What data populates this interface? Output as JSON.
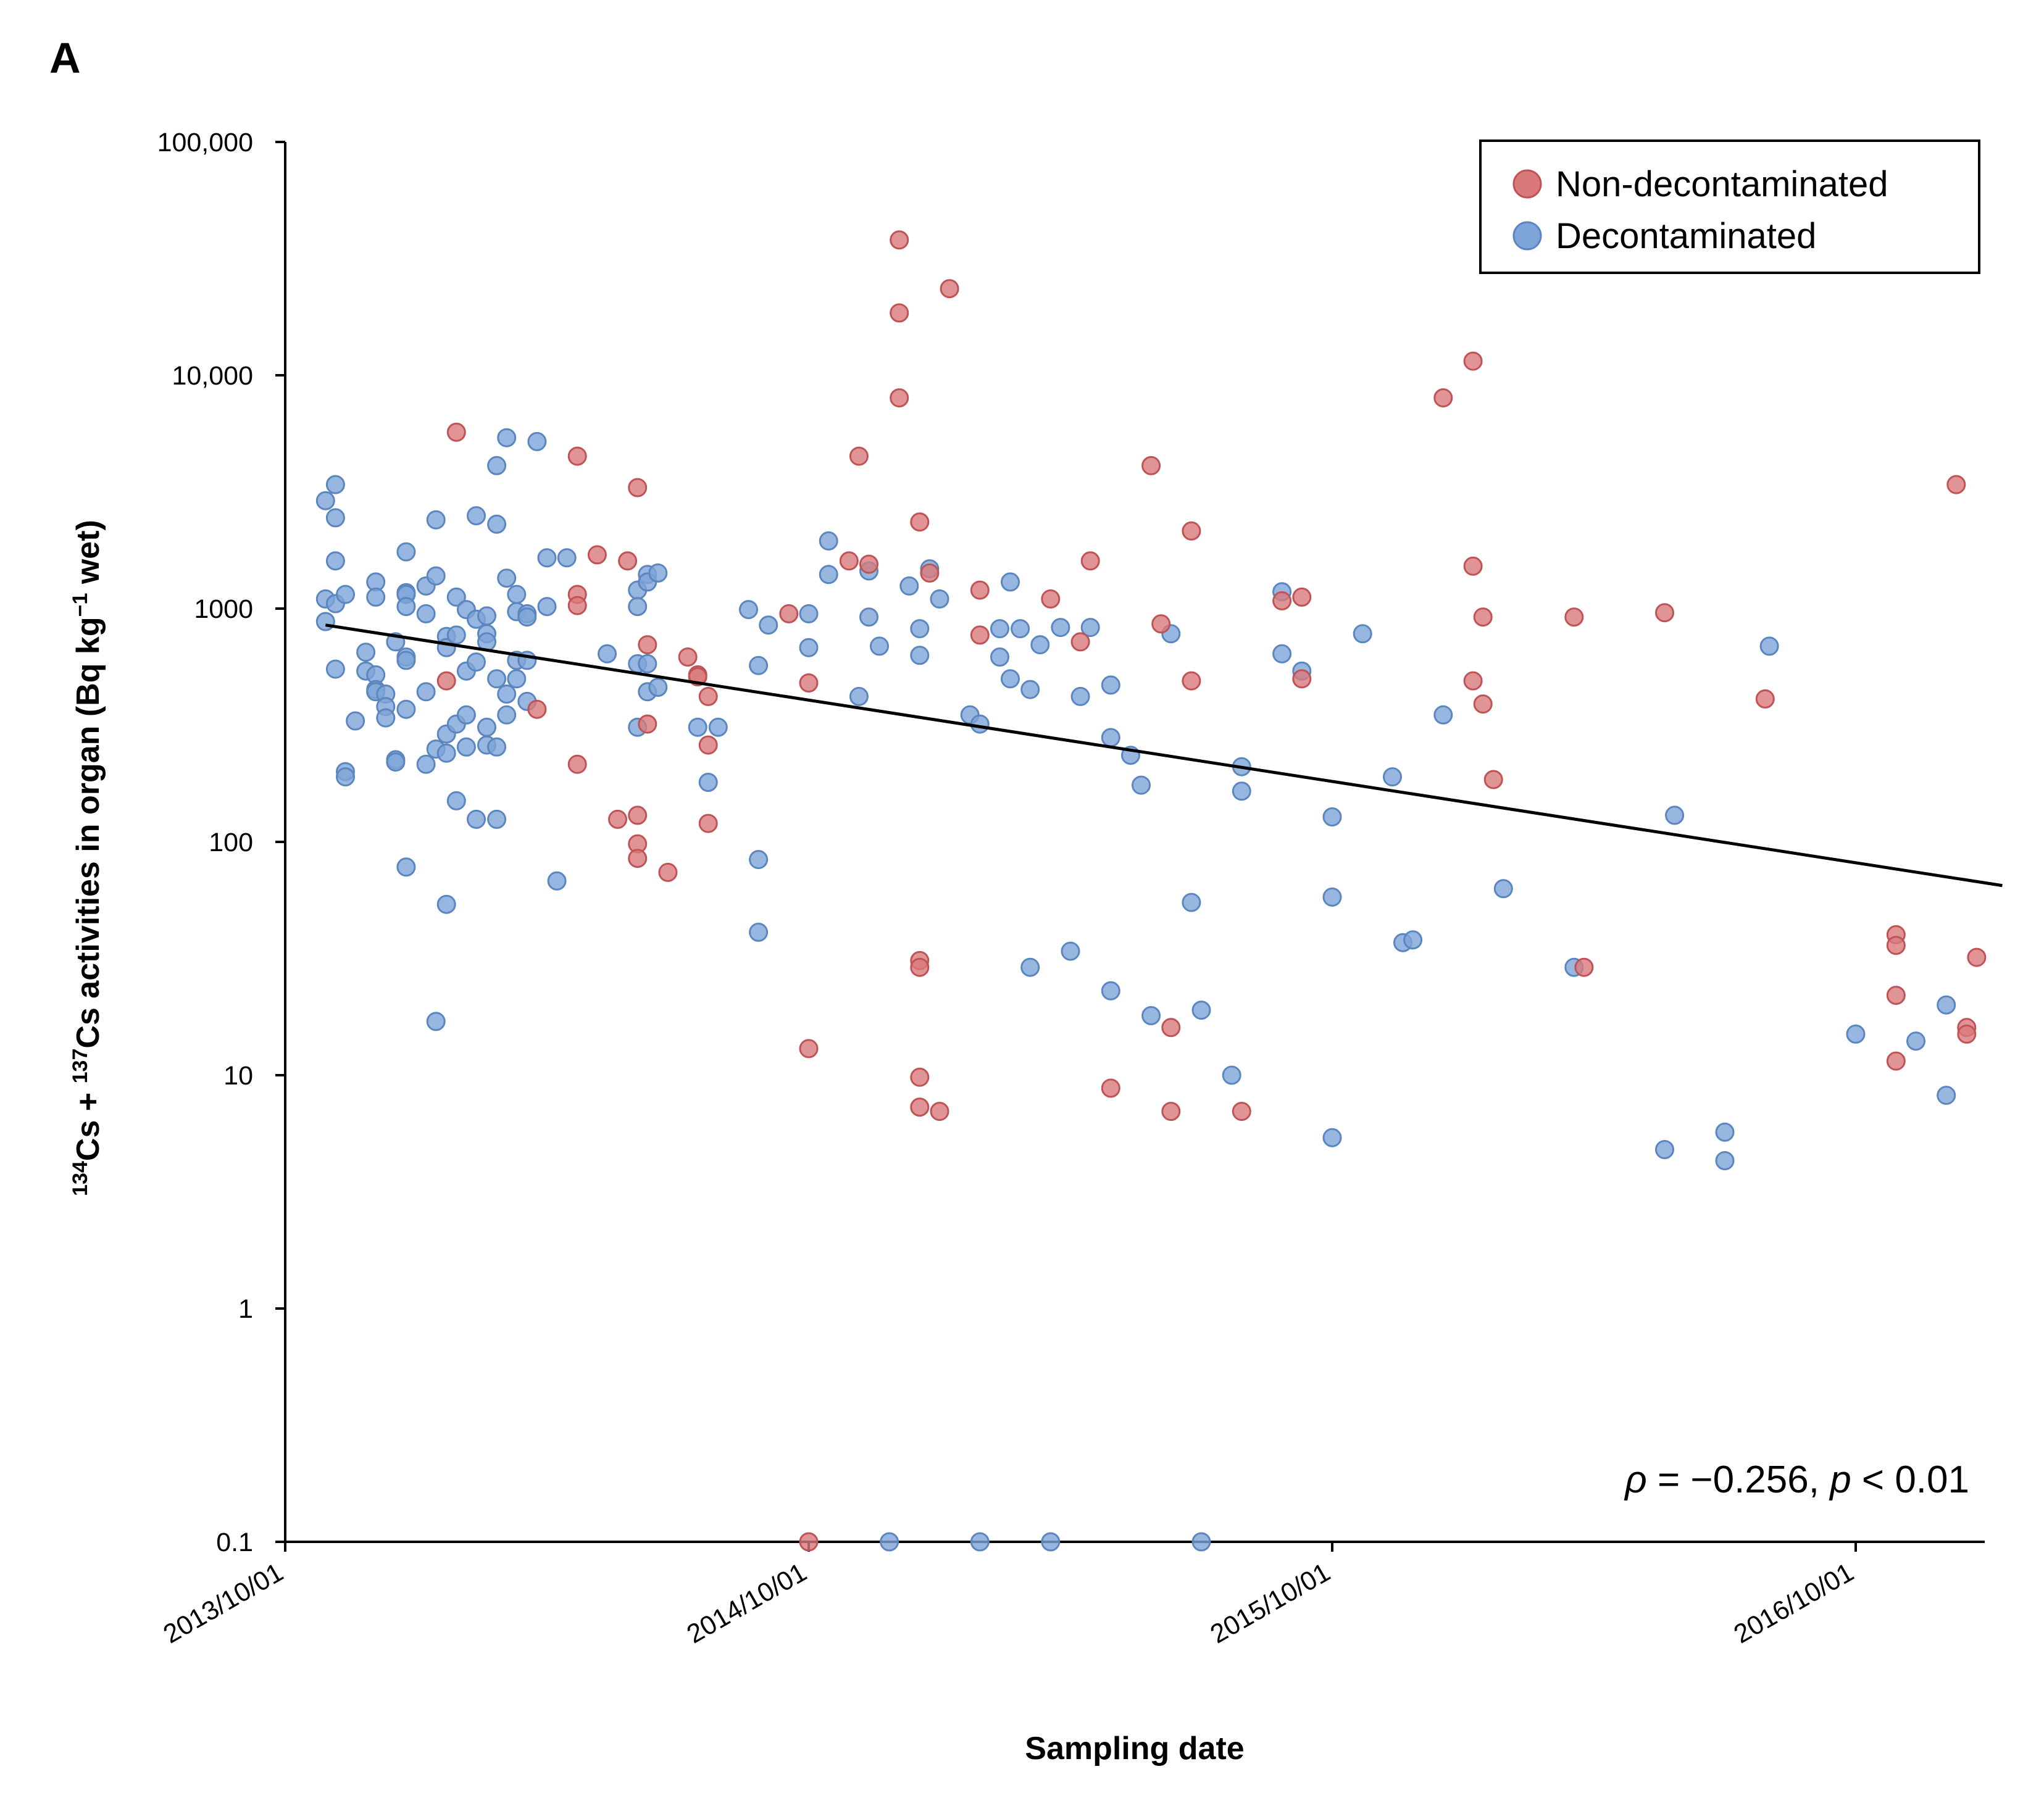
{
  "panel_label": "A",
  "chart_data": {
    "type": "scatter",
    "title": "",
    "xlabel": "Sampling date",
    "ylabel_parts": {
      "sup1": "134",
      "part1": "Cs + ",
      "sup2": "137",
      "part2": "Cs activities in organ (Bq kg",
      "sup3": "−1",
      "part3": " wet)"
    },
    "yscale": "log",
    "ylim": [
      0.1,
      100000
    ],
    "xlim": [
      2013.75,
      2017.0
    ],
    "y_ticks": [
      {
        "value": 0.1,
        "label": "0.1"
      },
      {
        "value": 1,
        "label": "1"
      },
      {
        "value": 10,
        "label": "10"
      },
      {
        "value": 100,
        "label": "100"
      },
      {
        "value": 1000,
        "label": "1000"
      },
      {
        "value": 10000,
        "label": "10,000"
      },
      {
        "value": 100000,
        "label": "100,000"
      }
    ],
    "x_ticks": [
      {
        "value": 2013.75,
        "label": "2013/10/01"
      },
      {
        "value": 2014.75,
        "label": "2014/10/01"
      },
      {
        "value": 2015.75,
        "label": "2015/10/01"
      },
      {
        "value": 2016.75,
        "label": "2016/10/01"
      }
    ],
    "legend": {
      "position": "top-right",
      "entries": [
        {
          "name": "Non-decontaminated",
          "color": "#d9797b",
          "edge": "#c05355"
        },
        {
          "name": "Decontaminated",
          "color": "#7ea5d8",
          "edge": "#5b86bf"
        }
      ]
    },
    "trendline": {
      "x": [
        2013.827,
        2017.03
      ],
      "y": [
        850,
        65
      ]
    },
    "annotation": {
      "rho": "ρ",
      "text_middle": " = −0.256, ",
      "p": "p",
      "text_end": " < 0.01"
    },
    "series": [
      {
        "name": "Decontaminated",
        "color": "#7ea5d8",
        "points": [
          [
            2013.827,
            2900
          ],
          [
            2013.827,
            1100
          ],
          [
            2013.827,
            880
          ],
          [
            2013.846,
            3400
          ],
          [
            2013.846,
            2450
          ],
          [
            2013.846,
            1600
          ],
          [
            2013.846,
            1050
          ],
          [
            2013.846,
            550
          ],
          [
            2013.865,
            1150
          ],
          [
            2013.865,
            200
          ],
          [
            2013.865,
            190
          ],
          [
            2013.884,
            330
          ],
          [
            2013.904,
            650
          ],
          [
            2013.904,
            540
          ],
          [
            2013.923,
            1300
          ],
          [
            2013.923,
            1120
          ],
          [
            2013.923,
            520
          ],
          [
            2013.923,
            450
          ],
          [
            2013.923,
            440
          ],
          [
            2013.942,
            430
          ],
          [
            2013.942,
            380
          ],
          [
            2013.942,
            340
          ],
          [
            2013.961,
            720
          ],
          [
            2013.961,
            225
          ],
          [
            2013.961,
            220
          ],
          [
            2013.981,
            1750
          ],
          [
            2013.981,
            1170
          ],
          [
            2013.981,
            1150
          ],
          [
            2013.981,
            1020
          ],
          [
            2013.981,
            620
          ],
          [
            2013.981,
            600
          ],
          [
            2013.981,
            370
          ],
          [
            2013.981,
            78
          ],
          [
            2014.019,
            1250
          ],
          [
            2014.019,
            950
          ],
          [
            2014.019,
            440
          ],
          [
            2014.019,
            215
          ],
          [
            2014.038,
            2400
          ],
          [
            2014.038,
            1380
          ],
          [
            2014.038,
            250
          ],
          [
            2014.038,
            17
          ],
          [
            2014.058,
            760
          ],
          [
            2014.058,
            680
          ],
          [
            2014.058,
            290
          ],
          [
            2014.058,
            240
          ],
          [
            2014.058,
            54
          ],
          [
            2014.077,
            1120
          ],
          [
            2014.077,
            770
          ],
          [
            2014.077,
            320
          ],
          [
            2014.077,
            150
          ],
          [
            2014.096,
            990
          ],
          [
            2014.096,
            540
          ],
          [
            2014.096,
            350
          ],
          [
            2014.096,
            255
          ],
          [
            2014.115,
            2500
          ],
          [
            2014.115,
            900
          ],
          [
            2014.115,
            590
          ],
          [
            2014.115,
            125
          ],
          [
            2014.135,
            930
          ],
          [
            2014.135,
            780
          ],
          [
            2014.135,
            720
          ],
          [
            2014.135,
            310
          ],
          [
            2014.135,
            260
          ],
          [
            2014.154,
            4100
          ],
          [
            2014.154,
            2300
          ],
          [
            2014.154,
            500
          ],
          [
            2014.154,
            255
          ],
          [
            2014.154,
            125
          ],
          [
            2014.173,
            5400
          ],
          [
            2014.173,
            1350
          ],
          [
            2014.173,
            430
          ],
          [
            2014.173,
            350
          ],
          [
            2014.192,
            1150
          ],
          [
            2014.192,
            970
          ],
          [
            2014.192,
            600
          ],
          [
            2014.192,
            500
          ],
          [
            2014.212,
            950
          ],
          [
            2014.212,
            920
          ],
          [
            2014.212,
            600
          ],
          [
            2014.212,
            400
          ],
          [
            2014.231,
            5200
          ],
          [
            2014.25,
            1650
          ],
          [
            2014.25,
            1020
          ],
          [
            2014.269,
            68
          ],
          [
            2014.288,
            1650
          ],
          [
            2014.365,
            640
          ],
          [
            2014.423,
            1200
          ],
          [
            2014.423,
            1020
          ],
          [
            2014.423,
            580
          ],
          [
            2014.423,
            310
          ],
          [
            2014.442,
            1400
          ],
          [
            2014.442,
            1300
          ],
          [
            2014.442,
            580
          ],
          [
            2014.442,
            440
          ],
          [
            2014.462,
            1420
          ],
          [
            2014.462,
            460
          ],
          [
            2014.538,
            310
          ],
          [
            2014.558,
            180
          ],
          [
            2014.577,
            310
          ],
          [
            2014.635,
            990
          ],
          [
            2014.654,
            570
          ],
          [
            2014.654,
            84
          ],
          [
            2014.654,
            41
          ],
          [
            2014.673,
            850
          ],
          [
            2014.75,
            950
          ],
          [
            2014.75,
            680
          ],
          [
            2014.788,
            1950
          ],
          [
            2014.788,
            1400
          ],
          [
            2014.846,
            420
          ],
          [
            2014.865,
            1450
          ],
          [
            2014.865,
            920
          ],
          [
            2014.885,
            690
          ],
          [
            2014.904,
            0.1
          ],
          [
            2014.942,
            1250
          ],
          [
            2014.962,
            820
          ],
          [
            2014.962,
            630
          ],
          [
            2014.981,
            1480
          ],
          [
            2015.0,
            1100
          ],
          [
            2015.058,
            350
          ],
          [
            2015.077,
            320
          ],
          [
            2015.077,
            0.1
          ],
          [
            2015.115,
            620
          ],
          [
            2015.115,
            820
          ],
          [
            2015.135,
            1300
          ],
          [
            2015.135,
            500
          ],
          [
            2015.154,
            820
          ],
          [
            2015.173,
            450
          ],
          [
            2015.173,
            29
          ],
          [
            2015.192,
            700
          ],
          [
            2015.212,
            0.1
          ],
          [
            2015.231,
            830
          ],
          [
            2015.25,
            34
          ],
          [
            2015.269,
            420
          ],
          [
            2015.288,
            830
          ],
          [
            2015.327,
            470
          ],
          [
            2015.327,
            280
          ],
          [
            2015.327,
            23
          ],
          [
            2015.365,
            235
          ],
          [
            2015.385,
            175
          ],
          [
            2015.404,
            18
          ],
          [
            2015.442,
            780
          ],
          [
            2015.481,
            55
          ],
          [
            2015.5,
            19
          ],
          [
            2015.5,
            0.1
          ],
          [
            2015.558,
            10
          ],
          [
            2015.577,
            210
          ],
          [
            2015.577,
            165
          ],
          [
            2015.654,
            1180
          ],
          [
            2015.654,
            640
          ],
          [
            2015.692,
            540
          ],
          [
            2015.75,
            128
          ],
          [
            2015.75,
            58
          ],
          [
            2015.75,
            5.4
          ],
          [
            2015.808,
            780
          ],
          [
            2015.865,
            190
          ],
          [
            2015.885,
            37
          ],
          [
            2015.904,
            38
          ],
          [
            2015.962,
            350
          ],
          [
            2016.077,
            63
          ],
          [
            2016.212,
            29
          ],
          [
            2016.385,
            4.8
          ],
          [
            2016.404,
            130
          ],
          [
            2016.5,
            5.7
          ],
          [
            2016.5,
            4.3
          ],
          [
            2016.585,
            690
          ],
          [
            2016.75,
            15
          ],
          [
            2016.865,
            14
          ],
          [
            2016.923,
            20
          ],
          [
            2016.923,
            8.2
          ]
        ]
      },
      {
        "name": "Non-decontaminated",
        "color": "#d9797b",
        "points": [
          [
            2014.058,
            490
          ],
          [
            2014.077,
            5700
          ],
          [
            2014.231,
            370
          ],
          [
            2014.308,
            4500
          ],
          [
            2014.308,
            1150
          ],
          [
            2014.308,
            1030
          ],
          [
            2014.308,
            215
          ],
          [
            2014.346,
            1700
          ],
          [
            2014.385,
            125
          ],
          [
            2014.404,
            1600
          ],
          [
            2014.423,
            3300
          ],
          [
            2014.423,
            130
          ],
          [
            2014.423,
            98
          ],
          [
            2014.423,
            85
          ],
          [
            2014.442,
            700
          ],
          [
            2014.442,
            320
          ],
          [
            2014.481,
            74
          ],
          [
            2014.519,
            620
          ],
          [
            2014.538,
            520
          ],
          [
            2014.538,
            510
          ],
          [
            2014.558,
            420
          ],
          [
            2014.558,
            260
          ],
          [
            2014.558,
            120
          ],
          [
            2014.712,
            950
          ],
          [
            2014.75,
            480
          ],
          [
            2014.75,
            13
          ],
          [
            2014.75,
            0.1
          ],
          [
            2014.827,
            1600
          ],
          [
            2014.846,
            4500
          ],
          [
            2014.865,
            1550
          ],
          [
            2014.923,
            38000
          ],
          [
            2014.923,
            18500
          ],
          [
            2014.923,
            8000
          ],
          [
            2014.962,
            2350
          ],
          [
            2014.962,
            31
          ],
          [
            2014.962,
            29
          ],
          [
            2014.962,
            9.8
          ],
          [
            2014.962,
            7.3
          ],
          [
            2014.981,
            1420
          ],
          [
            2015.0,
            7
          ],
          [
            2015.019,
            23500
          ],
          [
            2015.077,
            1200
          ],
          [
            2015.077,
            770
          ],
          [
            2015.212,
            1100
          ],
          [
            2015.269,
            720
          ],
          [
            2015.288,
            1600
          ],
          [
            2015.327,
            8.8
          ],
          [
            2015.404,
            4100
          ],
          [
            2015.423,
            860
          ],
          [
            2015.442,
            16
          ],
          [
            2015.442,
            7
          ],
          [
            2015.481,
            2150
          ],
          [
            2015.481,
            490
          ],
          [
            2015.577,
            7
          ],
          [
            2015.654,
            1080
          ],
          [
            2015.692,
            1120
          ],
          [
            2015.692,
            500
          ],
          [
            2015.962,
            8000
          ],
          [
            2016.019,
            11500
          ],
          [
            2016.019,
            1520
          ],
          [
            2016.019,
            490
          ],
          [
            2016.038,
            920
          ],
          [
            2016.038,
            390
          ],
          [
            2016.058,
            185
          ],
          [
            2016.212,
            920
          ],
          [
            2016.231,
            29
          ],
          [
            2016.385,
            960
          ],
          [
            2016.577,
            410
          ],
          [
            2016.827,
            40
          ],
          [
            2016.827,
            36
          ],
          [
            2016.827,
            22
          ],
          [
            2016.827,
            11.5
          ],
          [
            2016.942,
            3400
          ],
          [
            2016.962,
            16
          ],
          [
            2016.962,
            15
          ],
          [
            2016.981,
            32
          ]
        ]
      }
    ]
  }
}
